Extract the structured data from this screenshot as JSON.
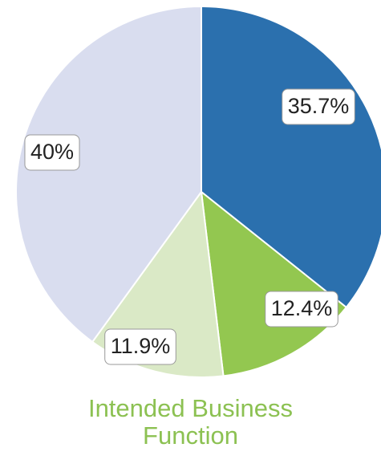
{
  "chart_data": {
    "type": "pie",
    "title": "Intended Business Function",
    "categories": [
      null,
      null,
      null,
      null
    ],
    "values": [
      35.7,
      12.4,
      11.9,
      40
    ],
    "value_labels": [
      "35.7%",
      "12.4%",
      "11.9%",
      "40%"
    ],
    "colors": [
      "#2b70ae",
      "#93c750",
      "#dae9c6",
      "#d9ddef"
    ]
  }
}
